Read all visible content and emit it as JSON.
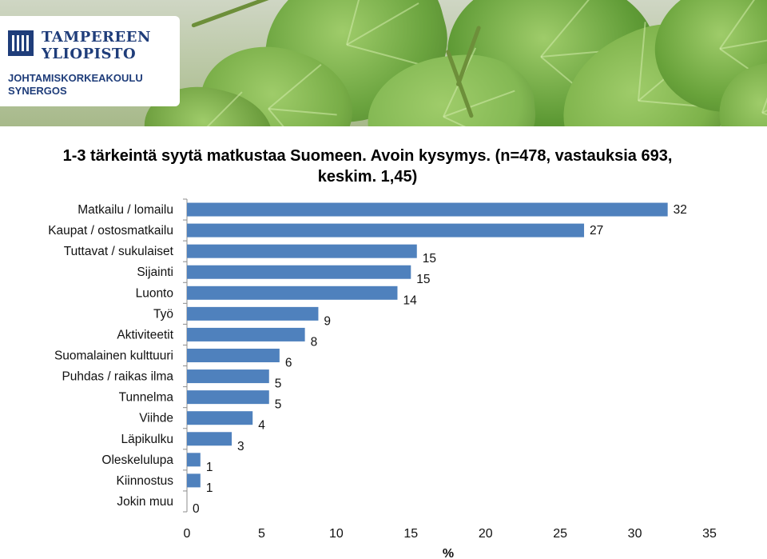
{
  "logo": {
    "name_line1": "TAMPEREEN",
    "name_line2": "YLIOPISTO",
    "unit_line1": "JOHTAMISKORKEAKOULU",
    "unit_line2": "SYNERGOS"
  },
  "colors": {
    "bar": "#4f81bd",
    "logo_blue": "#1f3d7a"
  },
  "chart_data": {
    "type": "bar",
    "orientation": "horizontal",
    "title": "1-3 tärkeintä syytä matkustaa Suomeen. Avoin kysymys. (n=478, vastauksia 693, keskim. 1,45)",
    "xlabel": "%",
    "ylabel": "",
    "xlim": [
      0,
      35
    ],
    "xticks": [
      0,
      5,
      10,
      15,
      20,
      25,
      30,
      35
    ],
    "grid": false,
    "categories": [
      "Matkailu / lomailu",
      "Kaupat / ostosmatkailu",
      "Tuttavat / sukulaiset",
      "Sijainti",
      "Luonto",
      "Työ",
      "Aktiviteetit",
      "Suomalainen kulttuuri",
      "Puhdas / raikas ilma",
      "Tunnelma",
      "Viihde",
      "Läpikulku",
      "Oleskelulupa",
      "Kiinnostus",
      "Jokin muu"
    ],
    "values": [
      32,
      27,
      15,
      15,
      14,
      9,
      8,
      6,
      5,
      5,
      4,
      3,
      1,
      1,
      0
    ],
    "bar_lengths": [
      32.2,
      26.6,
      15.4,
      15.0,
      14.1,
      8.8,
      7.9,
      6.2,
      5.5,
      5.5,
      4.4,
      3.0,
      0.9,
      0.9,
      0.0
    ]
  }
}
